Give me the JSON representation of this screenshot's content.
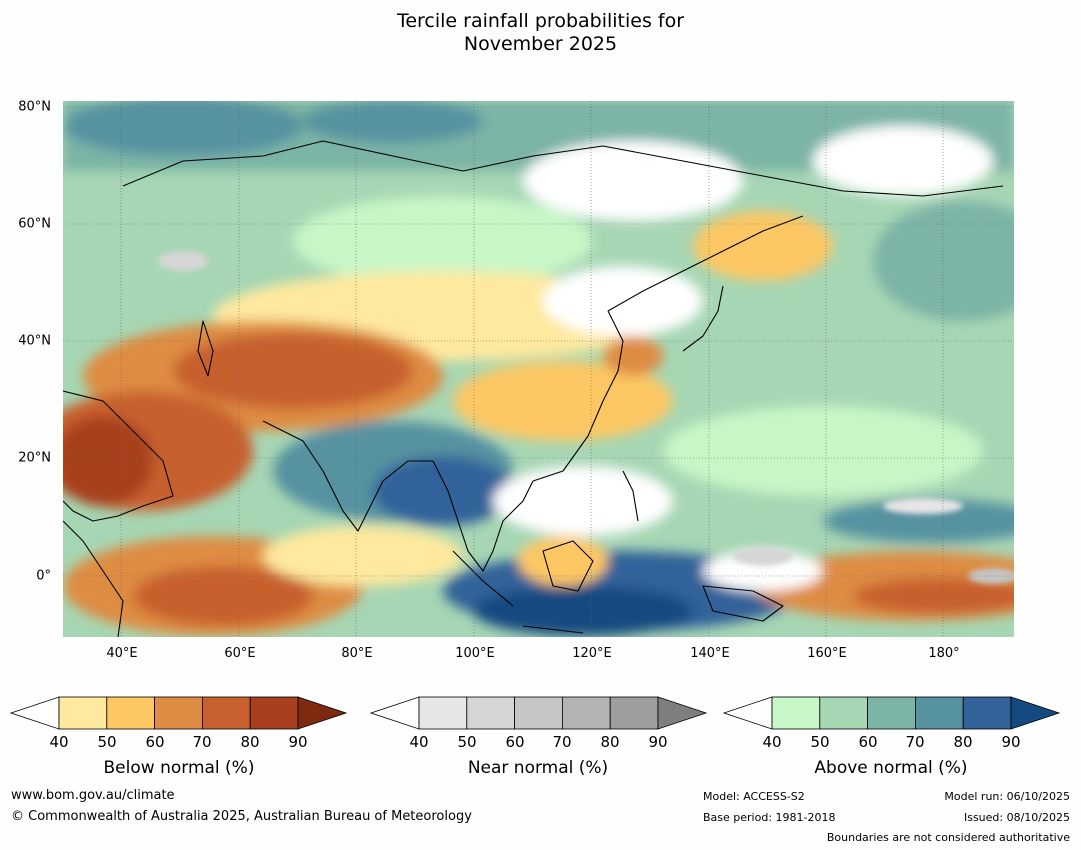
{
  "title": {
    "line1": "Tercile rainfall probabilities for",
    "line2": "November 2025"
  },
  "map": {
    "region": "Asia and western Pacific",
    "lat_labels": [
      "80°N",
      "60°N",
      "40°N",
      "20°N",
      "0°"
    ],
    "lon_labels": [
      "40°E",
      "60°E",
      "80°E",
      "100°E",
      "120°E",
      "140°E",
      "160°E",
      "180°"
    ]
  },
  "colorbars": [
    {
      "label": "Below normal (%)",
      "ticks": [
        "40",
        "50",
        "60",
        "70",
        "80",
        "90"
      ],
      "colors": [
        "#ffffff",
        "#fee99e",
        "#fdc764",
        "#de8c43",
        "#c8602f",
        "#a8401f",
        "#7e2a10"
      ]
    },
    {
      "label": "Near normal (%)",
      "ticks": [
        "40",
        "50",
        "60",
        "70",
        "80",
        "90"
      ],
      "colors": [
        "#ffffff",
        "#e6e6e6",
        "#d6d6d6",
        "#c5c5c5",
        "#b3b3b3",
        "#9e9e9e",
        "#7f7f7f"
      ]
    },
    {
      "label": "Above normal (%)",
      "ticks": [
        "40",
        "50",
        "60",
        "70",
        "80",
        "90"
      ],
      "colors": [
        "#ffffff",
        "#c7f7c7",
        "#a6d6b4",
        "#7cb4a6",
        "#5792a0",
        "#33629a",
        "#154a80"
      ]
    }
  ],
  "footer": {
    "website": "www.bom.gov.au/climate",
    "copyright": "© Commonwealth of Australia 2025, Australian Bureau of Meteorology",
    "model": "Model: ACCESS-S2",
    "base_period": "Base period: 1981-2018",
    "model_run": "Model run: 06/10/2025",
    "issued": "Issued: 08/10/2025",
    "disclaimer": "Boundaries are not considered authoritative"
  }
}
